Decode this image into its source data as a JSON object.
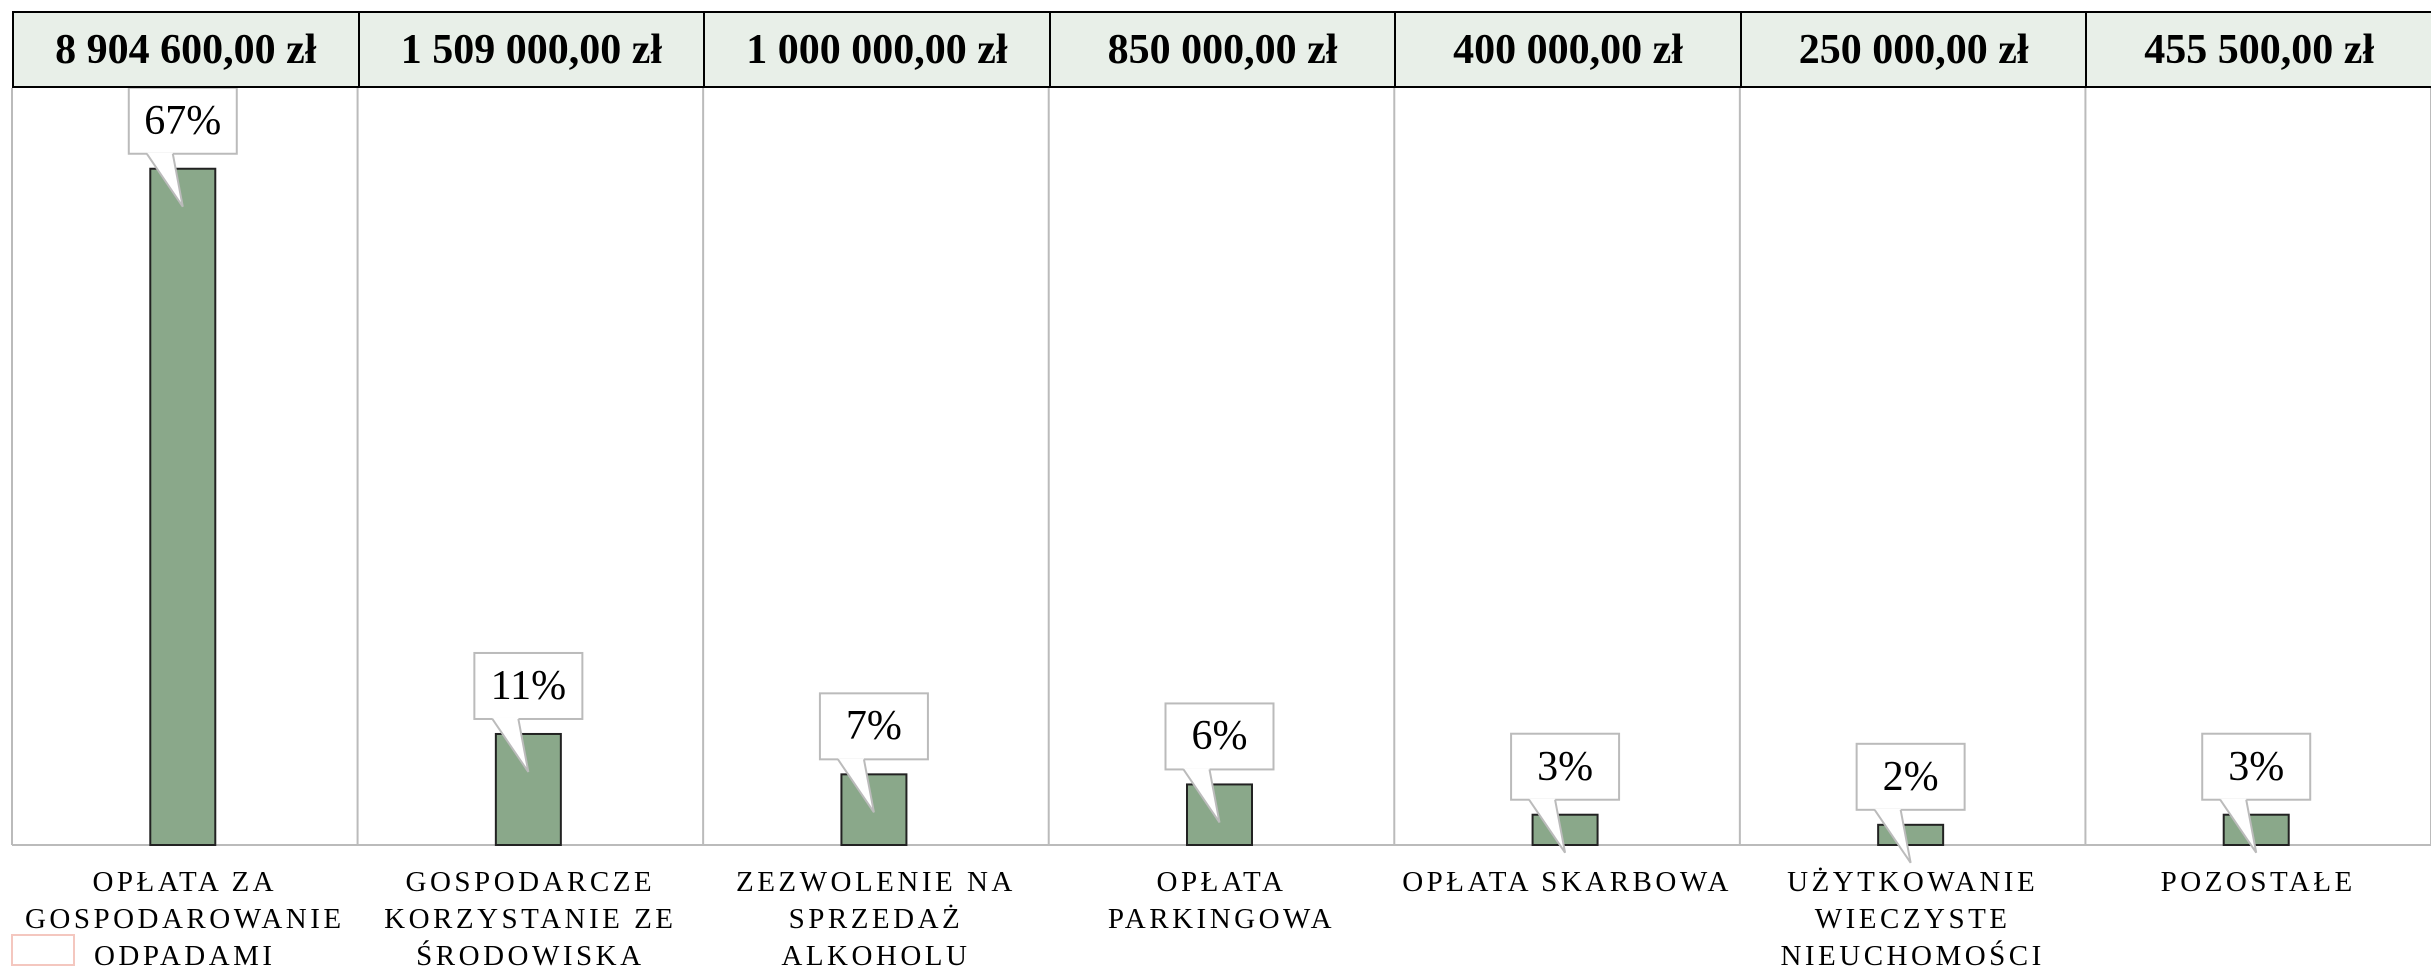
{
  "chart_data": {
    "type": "bar",
    "header_values": [
      "8 904 600,00 zł",
      "1 509 000,00 zł",
      "1 000 000,00 zł",
      "850 000,00 zł",
      "400 000,00 zł",
      "250 000,00 zł",
      "455 500,00 zł"
    ],
    "categories": [
      "OPŁATA ZA GOSPODAROWANIE ODPADAMI",
      "GOSPODARCZE KORZYSTANIE ZE ŚRODOWISKA",
      "ZEZWOLENIE NA SPRZEDAŻ ALKOHOLU",
      "OPŁATA PARKINGOWA",
      "OPŁATA SKARBOWA",
      "UŻYTKOWANIE WIECZYSTE NIEUCHOMOŚCI",
      "POZOSTAŁE"
    ],
    "values": [
      67,
      11,
      7,
      6,
      3,
      2,
      3
    ],
    "value_labels": [
      "67%",
      "11%",
      "7%",
      "6%",
      "3%",
      "2%",
      "3%"
    ],
    "color": "#8aa88a",
    "ylim": [
      0,
      75
    ]
  }
}
